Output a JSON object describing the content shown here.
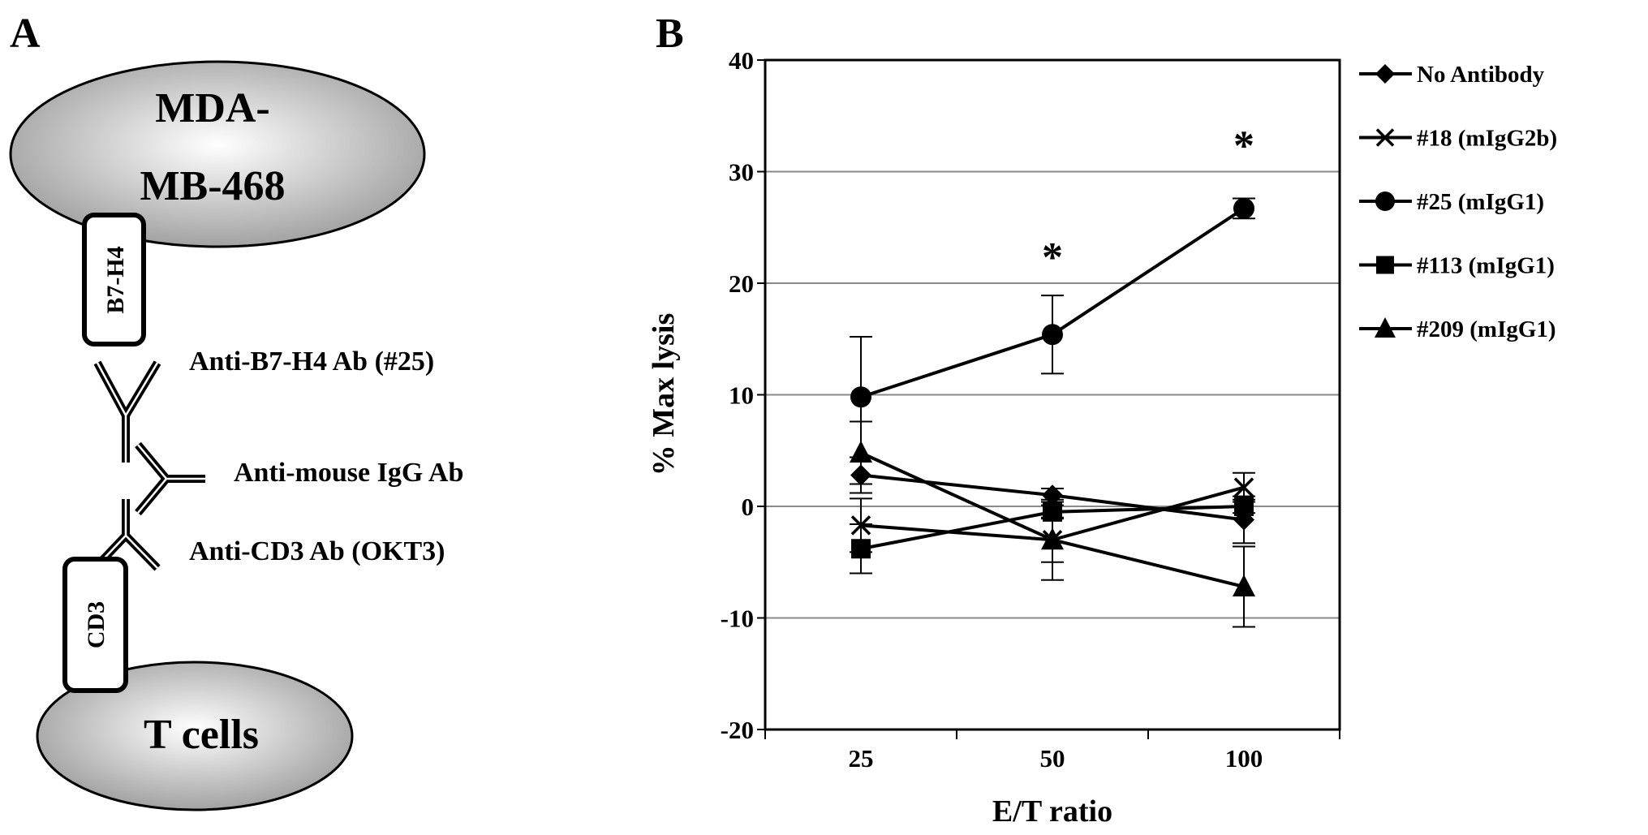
{
  "panel_a": {
    "label": "A",
    "tumor_cell": "MDA-",
    "tumor_cell_line2": "MB-468",
    "ligand": "B7-H4",
    "receptor": "CD3",
    "t_cell": "T cells",
    "antibodies": [
      "Anti-B7-H4 Ab (#25)",
      "Anti-mouse IgG Ab",
      "Anti-CD3 Ab (OKT3)"
    ]
  },
  "chart_data": {
    "panel_label": "B",
    "type": "line",
    "xlabel": "E/T ratio",
    "ylabel": "% Max lysis",
    "categories": [
      "25",
      "50",
      "100"
    ],
    "ylim": [
      -20,
      40
    ],
    "yticks": [
      "40",
      "30",
      "20",
      "10",
      "0",
      "-10",
      "-20"
    ],
    "ytick_values": [
      40,
      30,
      20,
      10,
      0,
      -10,
      -20
    ],
    "grid": true,
    "legend_position": "right",
    "series": [
      {
        "name": "No Antibody",
        "marker": "diamond",
        "values": [
          2.8,
          1.0,
          -1.2
        ],
        "errors": [
          1.6,
          0.6,
          2.1
        ]
      },
      {
        "name": "#18 (mIgG2b)",
        "marker": "x",
        "values": [
          -1.7,
          -3.0,
          1.7
        ],
        "errors": [
          2.4,
          2.0,
          1.3
        ]
      },
      {
        "name": "#25 (mIgG1)",
        "marker": "circle",
        "values": [
          9.8,
          15.4,
          26.7
        ],
        "errors": [
          5.4,
          3.5,
          0.9
        ]
      },
      {
        "name": "#113 (mIgG1)",
        "marker": "square",
        "values": [
          -3.8,
          -0.5,
          0.0
        ],
        "errors": [
          2.2,
          0.6,
          0.6
        ]
      },
      {
        "name": "#209 (mIgG1)",
        "marker": "triangle",
        "values": [
          4.8,
          -3.0,
          -7.2
        ],
        "errors": [
          2.8,
          3.6,
          3.6
        ]
      }
    ],
    "annotations": [
      {
        "text": "*",
        "category": "50",
        "y": 23
      },
      {
        "text": "*",
        "category": "100",
        "y": 33
      }
    ],
    "color": "#000000"
  }
}
